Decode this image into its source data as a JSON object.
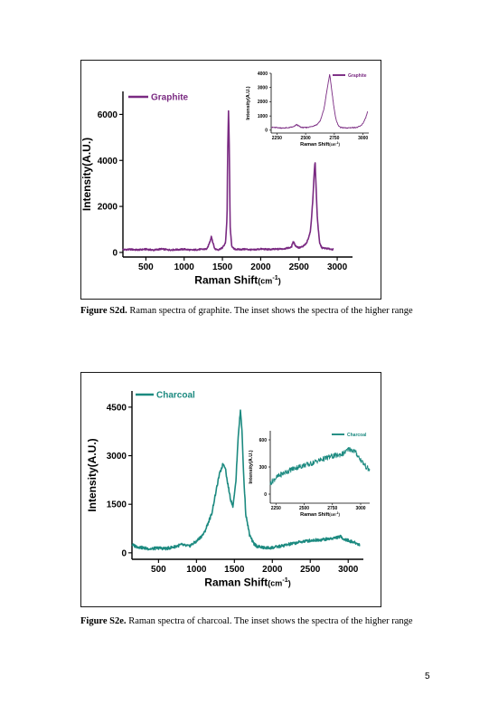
{
  "page": {
    "number": "5",
    "figures": [
      {
        "caption_label": "Figure S2d.",
        "caption_text": " Raman spectra of graphite. The inset shows the spectra of the higher range"
      },
      {
        "caption_label": "Figure S2e.",
        "caption_text": " Raman spectra of charcoal. The inset shows the spectra of the higher range"
      }
    ]
  },
  "chart_data": [
    {
      "type": "line",
      "panel": "main",
      "xlabel": "Raman Shift(cm^-1)",
      "ylabel": "Intensity(A.U.)",
      "xlim": [
        200,
        3200
      ],
      "ylim": [
        -200,
        7000
      ],
      "xticks": [
        500,
        1000,
        1500,
        2000,
        2500,
        3000
      ],
      "yticks": [
        0,
        2000,
        4000,
        6000
      ],
      "legend": "top-left",
      "color": "#7a2a82",
      "series": [
        {
          "name": "Graphite",
          "x": [
            200,
            300,
            400,
            500,
            600,
            700,
            800,
            900,
            1000,
            1100,
            1200,
            1300,
            1340,
            1355,
            1370,
            1400,
            1450,
            1500,
            1540,
            1560,
            1570,
            1580,
            1590,
            1600,
            1620,
            1650,
            1700,
            1800,
            1900,
            2000,
            2100,
            2200,
            2300,
            2400,
            2430,
            2450,
            2500,
            2550,
            2600,
            2650,
            2680,
            2700,
            2710,
            2720,
            2740,
            2770,
            2800,
            2900,
            2950
          ],
          "y": [
            120,
            130,
            110,
            140,
            100,
            150,
            110,
            120,
            140,
            100,
            130,
            150,
            500,
            700,
            500,
            150,
            120,
            200,
            400,
            1500,
            4500,
            6200,
            4500,
            1200,
            300,
            150,
            130,
            140,
            110,
            150,
            130,
            140,
            160,
            220,
            500,
            300,
            200,
            250,
            400,
            900,
            2200,
            3500,
            4000,
            3200,
            1500,
            400,
            200,
            150,
            130
          ]
        }
      ]
    },
    {
      "type": "line",
      "panel": "inset",
      "xlabel": "Raman Shift(cm^-1)",
      "ylabel": "Intensity(A.U.)",
      "xlim": [
        2200,
        3050
      ],
      "ylim": [
        -200,
        4000
      ],
      "xticks": [
        2250,
        2500,
        2750,
        3000
      ],
      "yticks": [
        0,
        1000,
        2000,
        3000,
        4000
      ],
      "legend": "top-right",
      "color": "#7a2a82",
      "series": [
        {
          "name": "Graphite",
          "x": [
            2200,
            2250,
            2300,
            2350,
            2400,
            2420,
            2440,
            2460,
            2500,
            2550,
            2600,
            2630,
            2660,
            2680,
            2700,
            2710,
            2720,
            2740,
            2760,
            2780,
            2800,
            2850,
            2900,
            2950,
            2980,
            3000,
            3020,
            3040
          ],
          "y": [
            200,
            180,
            150,
            170,
            250,
            400,
            300,
            200,
            180,
            250,
            400,
            700,
            1500,
            2500,
            3500,
            3900,
            3300,
            2000,
            900,
            400,
            200,
            150,
            180,
            200,
            300,
            500,
            800,
            1300
          ]
        }
      ]
    },
    {
      "type": "line",
      "panel": "main",
      "xlabel": "Raman Shift(cm^-1)",
      "ylabel": "Intensity(A.U.)",
      "xlim": [
        150,
        3200
      ],
      "ylim": [
        -200,
        5000
      ],
      "xticks": [
        500,
        1000,
        1500,
        2000,
        2500,
        3000
      ],
      "yticks": [
        0,
        1500,
        3000,
        4500
      ],
      "legend": "top-left",
      "color": "#1c8a80",
      "series": [
        {
          "name": "Charcoal",
          "x": [
            150,
            200,
            300,
            400,
            500,
            600,
            700,
            800,
            900,
            1000,
            1100,
            1200,
            1250,
            1300,
            1350,
            1380,
            1400,
            1450,
            1480,
            1520,
            1550,
            1580,
            1600,
            1620,
            1650,
            1700,
            1750,
            1800,
            1900,
            2000,
            2100,
            2200,
            2300,
            2400,
            2500,
            2600,
            2700,
            2800,
            2900,
            2950,
            3000,
            3100,
            3150
          ],
          "y": [
            250,
            200,
            150,
            120,
            150,
            130,
            180,
            250,
            200,
            350,
            600,
            1200,
            1800,
            2400,
            2750,
            2650,
            2300,
            1650,
            1450,
            2200,
            3600,
            4400,
            3800,
            2500,
            1200,
            550,
            300,
            200,
            150,
            160,
            200,
            250,
            300,
            350,
            380,
            400,
            420,
            450,
            500,
            420,
            380,
            300,
            250
          ]
        }
      ]
    },
    {
      "type": "line",
      "panel": "inset",
      "xlabel": "Raman Shift(cm^-1)",
      "ylabel": "Intensity(A.U.)",
      "xlim": [
        2200,
        3080
      ],
      "ylim": [
        -100,
        700
      ],
      "xticks": [
        2250,
        2500,
        2750,
        3000
      ],
      "yticks": [
        0,
        300,
        600
      ],
      "legend": "top-right",
      "color": "#1c8a80",
      "series": [
        {
          "name": "Charcoal",
          "x": [
            2200,
            2250,
            2300,
            2350,
            2400,
            2450,
            2500,
            2550,
            2600,
            2650,
            2700,
            2750,
            2800,
            2850,
            2900,
            2950,
            3000,
            3050,
            3080
          ],
          "y": [
            120,
            180,
            220,
            250,
            280,
            300,
            320,
            330,
            360,
            380,
            400,
            420,
            430,
            450,
            500,
            470,
            380,
            300,
            260
          ]
        }
      ]
    }
  ]
}
